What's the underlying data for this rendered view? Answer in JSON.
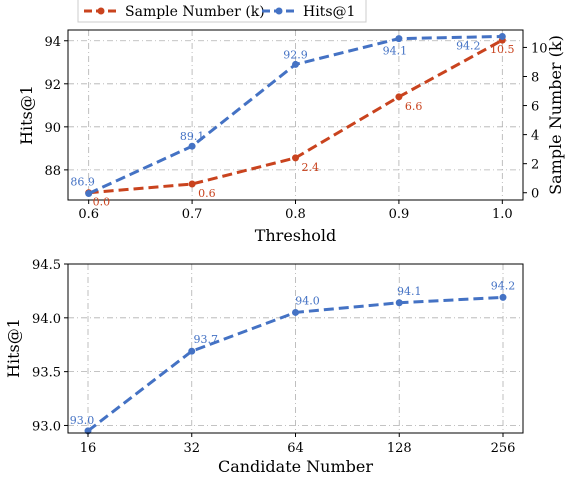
{
  "colors": {
    "sample_series": "#C9431E",
    "hits_series": "#4472C4",
    "grid": "#b0b0b0",
    "axis": "#000000"
  },
  "chart_data": [
    {
      "type": "line",
      "legend": {
        "placement": "top-center",
        "entries": [
          "Sample Number (k)",
          "Hits@1"
        ]
      },
      "xlabel": "Threshold",
      "ylabel": "Hits@1",
      "y2label": "Sample Number (k)",
      "x": [
        0.6,
        0.7,
        0.8,
        0.9,
        1.0
      ],
      "x_tick_labels": [
        "0.6",
        "0.7",
        "0.8",
        "0.9",
        "1.0"
      ],
      "xlim": [
        0.58,
        1.02
      ],
      "ylim": [
        86.6,
        94.5
      ],
      "y_ticks": [
        88,
        90,
        92,
        94
      ],
      "y2lim": [
        -0.5,
        11.2
      ],
      "y2_ticks": [
        0,
        2,
        4,
        6,
        8,
        10
      ],
      "grid": true,
      "series": [
        {
          "name": "Sample Number (k)",
          "axis": "right",
          "style": "dashed",
          "values": [
            0.0,
            0.6,
            2.4,
            6.6,
            10.5
          ],
          "labels": [
            "0.0",
            "0.6",
            "2.4",
            "6.6",
            "10.5"
          ]
        },
        {
          "name": "Hits@1",
          "axis": "left",
          "style": "dashed",
          "values": [
            86.9,
            89.1,
            92.9,
            94.1,
            94.2
          ],
          "labels": [
            "86.9",
            "89.1",
            "92.9",
            "94.1",
            "94.2"
          ]
        }
      ]
    },
    {
      "type": "line",
      "xlabel": "Candidate Number",
      "ylabel": "Hits@1",
      "categories": [
        "16",
        "32",
        "64",
        "128",
        "256"
      ],
      "ylim": [
        92.93,
        94.5
      ],
      "y_ticks": [
        93.0,
        93.5,
        94.0,
        94.5
      ],
      "y_tick_labels": [
        "93.0",
        "93.5",
        "94.0",
        "94.5"
      ],
      "grid": true,
      "series": [
        {
          "style": "dashed",
          "values": [
            92.95,
            93.69,
            94.05,
            94.14,
            94.19
          ],
          "labels": [
            "93.0",
            "93.7",
            "94.0",
            "94.1",
            "94.2"
          ]
        }
      ]
    }
  ]
}
